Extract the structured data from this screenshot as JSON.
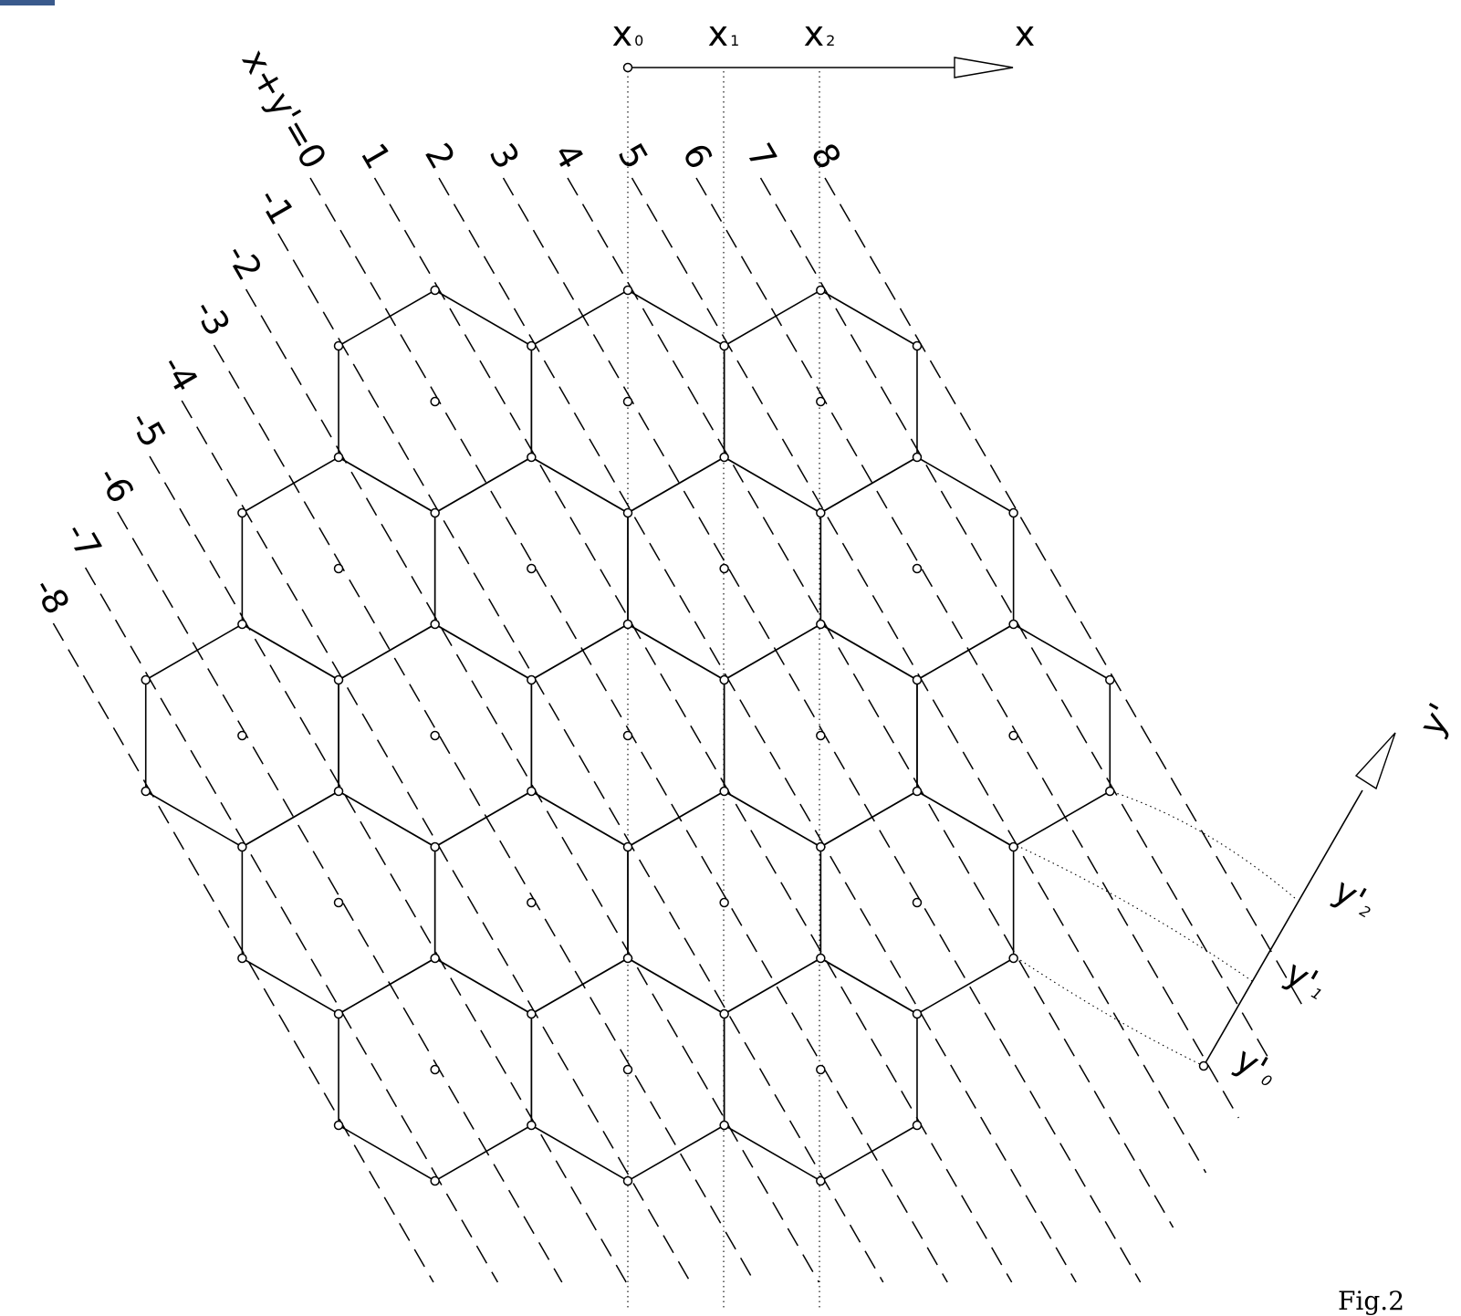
{
  "diagram": {
    "x_axis": {
      "label": "x",
      "ticks": [
        "x",
        "x",
        "x"
      ],
      "tick_subs": [
        "0",
        "1",
        "2"
      ]
    },
    "y_axis": {
      "label": "y'",
      "ticks": [
        "y'",
        "y'",
        "y'"
      ],
      "tick_subs": [
        "0",
        "1",
        "2"
      ]
    },
    "diagonal_labels": [
      "-8",
      "-7",
      "-6",
      "-5",
      "-4",
      "-3",
      "-2",
      "-1",
      "x+y'=0",
      "1",
      "2",
      "3",
      "4",
      "5",
      "6",
      "7",
      "8"
    ],
    "figure_label": "Fig.2",
    "colors": {
      "line": "#000000",
      "background": "#ffffff",
      "header_accent": "#3a5a8c"
    }
  }
}
